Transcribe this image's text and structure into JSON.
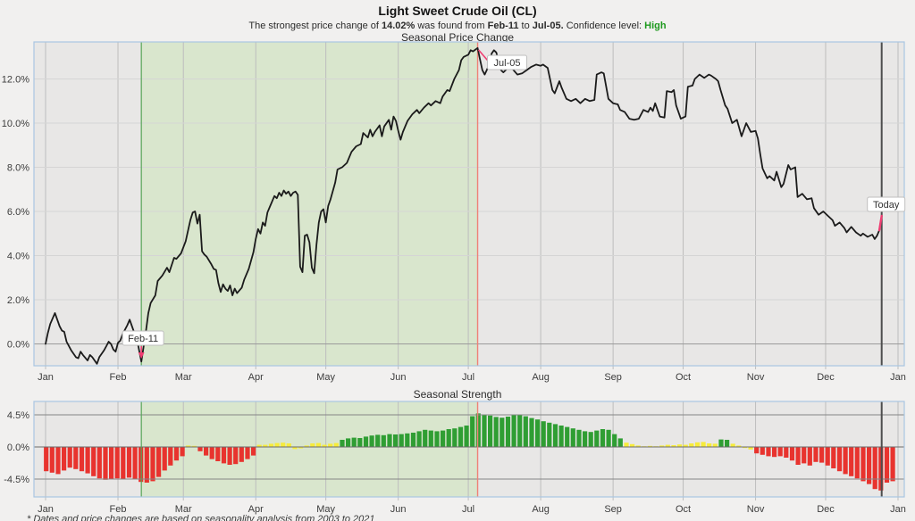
{
  "header": {
    "title": "Light Sweet Crude Oil (CL)",
    "subtitle_parts": [
      {
        "text": "The strongest price change of ",
        "bold": false
      },
      {
        "text": "14.02%",
        "bold": true
      },
      {
        "text": " was found from ",
        "bold": false
      },
      {
        "text": "Feb-11",
        "bold": true
      },
      {
        "text": " to ",
        "bold": false
      },
      {
        "text": "Jul-05.",
        "bold": true
      },
      {
        "text": " Confidence level: ",
        "bold": false
      },
      {
        "text": "High",
        "bold": true,
        "color": "#1f9a1f"
      }
    ]
  },
  "footnote": "* Dates and price changes are based on seasonality analysis from 2003 to 2021",
  "colors": {
    "page_bg": "#f1f0ef",
    "plot_bg": "#e8e7e6",
    "plot_border": "#a9c6e2",
    "grid_h": "#d5d5d5",
    "grid_v": "#bdbdbd",
    "zero_line": "#9b9b9b",
    "strength_grid": "#858585",
    "strength_zero": "#6b6b6b",
    "highlight_region_fill": "#d9e6cd",
    "region_start_line": "#55a556",
    "region_end_line": "#ef8177",
    "today_line": "#4d4d4d",
    "annotation_accent": "#ef3e72",
    "line": "#1b1b1b",
    "bar_positive": "#2f9e33",
    "bar_negative": "#e8332e",
    "bar_neutral": "#f7ec3a",
    "confidence_high": "#1f9a1f",
    "label_box_bg": "#ffffff",
    "label_box_border": "#bfbfbf"
  },
  "chart_data": [
    {
      "type": "line",
      "title": "Seasonal Price Change",
      "x_tick_labels": [
        "Jan",
        "Feb",
        "Mar",
        "Apr",
        "May",
        "Jun",
        "Jul",
        "Aug",
        "Sep",
        "Oct",
        "Nov",
        "Dec",
        "Jan"
      ],
      "month_start_days": [
        1,
        32,
        60,
        91,
        121,
        152,
        182,
        213,
        244,
        274,
        305,
        335,
        366
      ],
      "y_tick_labels": [
        "0.0%",
        "2.0%",
        "4.0%",
        "6.0%",
        "8.0%",
        "10.0%",
        "12.0%"
      ],
      "y_tick_values": [
        0,
        2,
        4,
        6,
        8,
        10,
        12
      ],
      "ylim": [
        -1.0,
        13.68
      ],
      "highlight_region_days": [
        42,
        186
      ],
      "today_day": 359,
      "annotations": [
        {
          "label": "Feb-11",
          "day": 42,
          "value": -0.8
        },
        {
          "label": "Jul-05",
          "day": 186,
          "value": 13.4
        },
        {
          "label": "Today",
          "day": 359,
          "value": 5.8
        }
      ],
      "points": [
        [
          1,
          0.0
        ],
        [
          2,
          0.5
        ],
        [
          3,
          0.9
        ],
        [
          5,
          1.4
        ],
        [
          6,
          1.1
        ],
        [
          7,
          0.8
        ],
        [
          8,
          0.6
        ],
        [
          9,
          0.55
        ],
        [
          10,
          0.1
        ],
        [
          12,
          -0.3
        ],
        [
          14,
          -0.6
        ],
        [
          15,
          -0.65
        ],
        [
          16,
          -0.35
        ],
        [
          17,
          -0.5
        ],
        [
          19,
          -0.75
        ],
        [
          20,
          -0.5
        ],
        [
          21,
          -0.6
        ],
        [
          23,
          -0.9
        ],
        [
          24,
          -0.6
        ],
        [
          26,
          -0.3
        ],
        [
          27,
          -0.1
        ],
        [
          28,
          0.1
        ],
        [
          29,
          0.0
        ],
        [
          30,
          -0.25
        ],
        [
          31,
          -0.35
        ],
        [
          32,
          0.05
        ],
        [
          33,
          0.15
        ],
        [
          34,
          0.45
        ],
        [
          36,
          0.85
        ],
        [
          37,
          1.1
        ],
        [
          38,
          0.8
        ],
        [
          39,
          0.5
        ],
        [
          40,
          0.3
        ],
        [
          41,
          -0.25
        ],
        [
          42,
          -0.8
        ],
        [
          43,
          -0.1
        ],
        [
          44,
          0.6
        ],
        [
          45,
          1.4
        ],
        [
          46,
          1.85
        ],
        [
          48,
          2.2
        ],
        [
          49,
          2.85
        ],
        [
          51,
          3.1
        ],
        [
          53,
          3.45
        ],
        [
          54,
          3.25
        ],
        [
          56,
          3.9
        ],
        [
          57,
          3.85
        ],
        [
          59,
          4.1
        ],
        [
          61,
          4.65
        ],
        [
          63,
          5.6
        ],
        [
          64,
          5.95
        ],
        [
          65,
          6.0
        ],
        [
          66,
          5.45
        ],
        [
          67,
          5.85
        ],
        [
          68,
          4.2
        ],
        [
          69,
          4.05
        ],
        [
          70,
          3.95
        ],
        [
          72,
          3.6
        ],
        [
          73,
          3.4
        ],
        [
          74,
          3.35
        ],
        [
          75,
          2.75
        ],
        [
          76,
          2.35
        ],
        [
          77,
          2.7
        ],
        [
          78,
          2.5
        ],
        [
          79,
          2.4
        ],
        [
          80,
          2.65
        ],
        [
          81,
          2.2
        ],
        [
          82,
          2.5
        ],
        [
          83,
          2.3
        ],
        [
          85,
          2.55
        ],
        [
          86,
          2.9
        ],
        [
          88,
          3.4
        ],
        [
          90,
          4.15
        ],
        [
          91,
          4.75
        ],
        [
          92,
          5.2
        ],
        [
          93,
          5.0
        ],
        [
          94,
          5.5
        ],
        [
          95,
          5.35
        ],
        [
          96,
          5.95
        ],
        [
          97,
          6.2
        ],
        [
          98,
          6.45
        ],
        [
          99,
          6.7
        ],
        [
          100,
          6.6
        ],
        [
          101,
          6.85
        ],
        [
          102,
          6.7
        ],
        [
          103,
          6.95
        ],
        [
          104,
          6.8
        ],
        [
          105,
          6.9
        ],
        [
          106,
          6.7
        ],
        [
          107,
          6.85
        ],
        [
          108,
          6.9
        ],
        [
          109,
          6.75
        ],
        [
          110,
          3.5
        ],
        [
          111,
          3.25
        ],
        [
          112,
          4.9
        ],
        [
          113,
          4.95
        ],
        [
          114,
          4.6
        ],
        [
          115,
          3.45
        ],
        [
          116,
          3.2
        ],
        [
          117,
          4.5
        ],
        [
          118,
          5.5
        ],
        [
          119,
          6.0
        ],
        [
          120,
          6.1
        ],
        [
          121,
          5.5
        ],
        [
          122,
          6.25
        ],
        [
          123,
          6.55
        ],
        [
          125,
          7.3
        ],
        [
          126,
          7.9
        ],
        [
          128,
          8.0
        ],
        [
          130,
          8.2
        ],
        [
          132,
          8.7
        ],
        [
          134,
          8.95
        ],
        [
          136,
          9.05
        ],
        [
          137,
          9.55
        ],
        [
          139,
          9.35
        ],
        [
          140,
          9.7
        ],
        [
          141,
          9.4
        ],
        [
          142,
          9.6
        ],
        [
          144,
          9.9
        ],
        [
          145,
          9.4
        ],
        [
          146,
          9.85
        ],
        [
          148,
          10.15
        ],
        [
          149,
          9.7
        ],
        [
          150,
          10.3
        ],
        [
          151,
          10.1
        ],
        [
          152,
          9.65
        ],
        [
          153,
          9.25
        ],
        [
          154,
          9.6
        ],
        [
          156,
          10.1
        ],
        [
          158,
          10.4
        ],
        [
          160,
          10.6
        ],
        [
          161,
          10.45
        ],
        [
          163,
          10.7
        ],
        [
          165,
          10.9
        ],
        [
          166,
          10.8
        ],
        [
          168,
          11.0
        ],
        [
          170,
          10.9
        ],
        [
          171,
          11.2
        ],
        [
          173,
          11.5
        ],
        [
          174,
          11.45
        ],
        [
          176,
          12.0
        ],
        [
          178,
          12.4
        ],
        [
          179,
          12.85
        ],
        [
          180,
          13.0
        ],
        [
          182,
          13.1
        ],
        [
          183,
          13.3
        ],
        [
          184,
          13.25
        ],
        [
          186,
          13.4
        ],
        [
          187,
          12.9
        ],
        [
          188,
          12.4
        ],
        [
          189,
          12.2
        ],
        [
          191,
          12.65
        ],
        [
          192,
          13.15
        ],
        [
          193,
          13.3
        ],
        [
          194,
          13.2
        ],
        [
          195,
          12.8
        ],
        [
          196,
          12.4
        ],
        [
          197,
          12.3
        ],
        [
          199,
          12.5
        ],
        [
          201,
          12.45
        ],
        [
          203,
          12.2
        ],
        [
          205,
          12.25
        ],
        [
          207,
          12.4
        ],
        [
          209,
          12.55
        ],
        [
          211,
          12.65
        ],
        [
          213,
          12.6
        ],
        [
          214,
          12.65
        ],
        [
          216,
          12.5
        ],
        [
          218,
          11.5
        ],
        [
          219,
          11.35
        ],
        [
          221,
          11.9
        ],
        [
          222,
          11.6
        ],
        [
          224,
          11.1
        ],
        [
          226,
          11.0
        ],
        [
          228,
          11.1
        ],
        [
          230,
          10.9
        ],
        [
          232,
          11.1
        ],
        [
          234,
          11.0
        ],
        [
          236,
          11.05
        ],
        [
          237,
          12.2
        ],
        [
          239,
          12.3
        ],
        [
          240,
          12.25
        ],
        [
          242,
          11.1
        ],
        [
          244,
          10.9
        ],
        [
          246,
          10.85
        ],
        [
          247,
          10.6
        ],
        [
          249,
          10.5
        ],
        [
          251,
          10.2
        ],
        [
          253,
          10.15
        ],
        [
          255,
          10.2
        ],
        [
          257,
          10.6
        ],
        [
          259,
          10.5
        ],
        [
          260,
          10.7
        ],
        [
          261,
          10.55
        ],
        [
          262,
          10.9
        ],
        [
          264,
          10.3
        ],
        [
          266,
          10.25
        ],
        [
          267,
          11.45
        ],
        [
          269,
          11.4
        ],
        [
          270,
          11.5
        ],
        [
          271,
          10.8
        ],
        [
          273,
          10.2
        ],
        [
          275,
          10.3
        ],
        [
          276,
          11.65
        ],
        [
          278,
          11.7
        ],
        [
          279,
          12.0
        ],
        [
          281,
          12.2
        ],
        [
          283,
          12.05
        ],
        [
          285,
          12.2
        ],
        [
          286,
          12.15
        ],
        [
          288,
          12.0
        ],
        [
          289,
          11.9
        ],
        [
          290,
          11.5
        ],
        [
          292,
          10.8
        ],
        [
          293,
          10.65
        ],
        [
          295,
          10.0
        ],
        [
          297,
          10.15
        ],
        [
          299,
          9.4
        ],
        [
          301,
          10.0
        ],
        [
          302,
          9.8
        ],
        [
          303,
          9.6
        ],
        [
          305,
          9.65
        ],
        [
          306,
          9.3
        ],
        [
          307,
          8.6
        ],
        [
          308,
          7.95
        ],
        [
          310,
          7.5
        ],
        [
          311,
          7.6
        ],
        [
          313,
          7.4
        ],
        [
          314,
          7.8
        ],
        [
          316,
          7.1
        ],
        [
          317,
          7.25
        ],
        [
          319,
          8.1
        ],
        [
          320,
          7.9
        ],
        [
          322,
          8.0
        ],
        [
          323,
          6.65
        ],
        [
          325,
          6.8
        ],
        [
          327,
          6.55
        ],
        [
          329,
          6.6
        ],
        [
          330,
          6.15
        ],
        [
          332,
          5.85
        ],
        [
          334,
          6.0
        ],
        [
          336,
          5.8
        ],
        [
          338,
          5.6
        ],
        [
          339,
          5.35
        ],
        [
          341,
          5.5
        ],
        [
          343,
          5.25
        ],
        [
          344,
          5.05
        ],
        [
          346,
          5.3
        ],
        [
          348,
          5.05
        ],
        [
          350,
          4.9
        ],
        [
          351,
          5.0
        ],
        [
          353,
          4.85
        ],
        [
          355,
          4.95
        ],
        [
          356,
          4.75
        ],
        [
          357,
          4.9
        ],
        [
          358,
          5.15
        ],
        [
          359,
          5.8
        ]
      ]
    },
    {
      "type": "bar",
      "title": "Seasonal Strength",
      "x_tick_labels": [
        "Jan",
        "Feb",
        "Mar",
        "Apr",
        "May",
        "Jun",
        "Jul",
        "Aug",
        "Sep",
        "Oct",
        "Nov",
        "Dec",
        "Jan"
      ],
      "month_start_days": [
        1,
        32,
        60,
        91,
        121,
        152,
        182,
        213,
        244,
        274,
        305,
        335,
        366
      ],
      "y_tick_labels": [
        "4.5%",
        "0.0%",
        "-4.5%"
      ],
      "y_tick_values": [
        4.5,
        0,
        -4.5
      ],
      "ylim": [
        -6.9,
        6.4
      ],
      "highlight_region_days": [
        42,
        186
      ],
      "today_day": 359,
      "color_thresholds": {
        "green_min": 0.8,
        "red_max": -0.55
      },
      "bar_values": [
        -3.4,
        -3.6,
        -3.8,
        -3.3,
        -2.9,
        -3.1,
        -3.4,
        -3.7,
        -4.1,
        -4.4,
        -4.6,
        -4.5,
        -4.4,
        -4.5,
        -4.3,
        -4.5,
        -4.9,
        -5.0,
        -4.8,
        -4.2,
        -3.3,
        -2.6,
        -1.9,
        -1.3,
        0.2,
        0.15,
        -0.6,
        -1.2,
        -1.7,
        -2.0,
        -2.3,
        -2.5,
        -2.4,
        -2.1,
        -1.7,
        -1.2,
        0.3,
        0.3,
        0.45,
        0.55,
        0.6,
        0.5,
        -0.3,
        -0.2,
        0.2,
        0.5,
        0.55,
        0.3,
        0.45,
        0.55,
        1.0,
        1.2,
        1.3,
        1.25,
        1.45,
        1.6,
        1.7,
        1.65,
        1.8,
        1.75,
        1.8,
        1.9,
        2.0,
        2.2,
        2.4,
        2.3,
        2.2,
        2.3,
        2.5,
        2.6,
        2.8,
        3.0,
        4.3,
        4.7,
        4.55,
        4.4,
        4.2,
        4.1,
        4.25,
        4.45,
        4.5,
        4.3,
        4.05,
        3.85,
        3.6,
        3.4,
        3.2,
        3.0,
        2.8,
        2.6,
        2.4,
        2.2,
        2.1,
        2.3,
        2.5,
        2.4,
        1.8,
        1.2,
        0.6,
        0.4,
        0.2,
        0.1,
        0.15,
        0.1,
        0.2,
        0.3,
        0.25,
        0.35,
        0.3,
        0.5,
        0.65,
        0.7,
        0.5,
        0.45,
        1.05,
        1.0,
        0.45,
        0.2,
        -0.15,
        -0.35,
        -0.9,
        -1.1,
        -1.3,
        -1.4,
        -1.3,
        -1.5,
        -1.9,
        -2.5,
        -2.3,
        -2.6,
        -2.1,
        -2.2,
        -2.6,
        -3.0,
        -3.4,
        -3.8,
        -4.1,
        -4.4,
        -4.8,
        -5.2,
        -5.9,
        -6.1,
        -5.0,
        -4.8
      ]
    }
  ]
}
